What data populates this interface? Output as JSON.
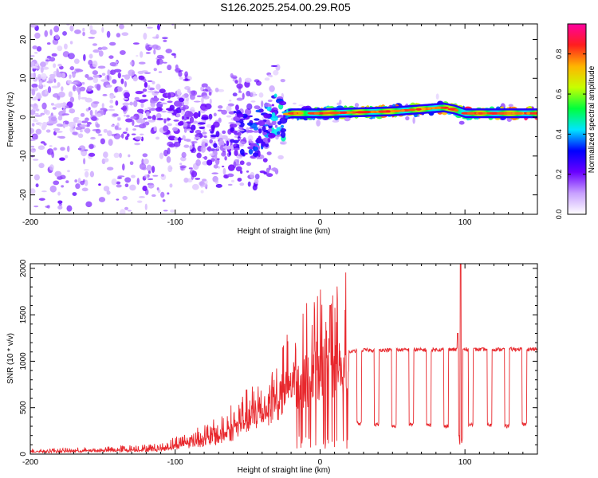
{
  "figure_title": "S126.2025.254.00.29.R05",
  "colors": {
    "series_line": "#e8282d",
    "axis": "#000000",
    "tick": "#000000"
  },
  "chart_data": [
    {
      "type": "heatmap",
      "title": "S126.2025.254.00.29.R05",
      "xlabel": "Height of straight line (km)",
      "ylabel": "Frequency (Hz)",
      "xlim": [
        -200,
        150
      ],
      "ylim": [
        -25,
        24
      ],
      "xticks": [
        -200,
        -100,
        0,
        100
      ],
      "yticks": [
        -20,
        -10,
        0,
        10,
        20
      ],
      "colorbar": {
        "label": "Normalized spectral amplitude",
        "range": [
          0,
          0.95
        ],
        "ticks": [
          "0.0",
          "0.2",
          "0.4",
          "0.6",
          "0.8"
        ],
        "tick_values": [
          0.0,
          0.2,
          0.4,
          0.6,
          0.8
        ],
        "colormap": [
          "#ffffff",
          "#c8a0ff",
          "#6a00ff",
          "#0000ff",
          "#00e5ff",
          "#00ff3c",
          "#c8ff00",
          "#ffb400",
          "#ff1e1e",
          "#ff00a0"
        ]
      },
      "ridge": [
        {
          "x": -200,
          "freq": 5
        },
        {
          "x": -150,
          "freq": 4
        },
        {
          "x": -110,
          "freq": 2
        },
        {
          "x": -90,
          "freq": -3
        },
        {
          "x": -75,
          "freq": -7
        },
        {
          "x": -60,
          "freq": -3
        },
        {
          "x": -45,
          "freq": -5
        },
        {
          "x": -30,
          "freq": 0
        },
        {
          "x": -20,
          "freq": 1
        },
        {
          "x": 0,
          "freq": 1
        },
        {
          "x": 50,
          "freq": 1.5
        },
        {
          "x": 85,
          "freq": 2.5
        },
        {
          "x": 92,
          "freq": 2
        },
        {
          "x": 100,
          "freq": 1
        },
        {
          "x": 150,
          "freq": 1
        }
      ],
      "ridge_intensity": [
        {
          "x": -200,
          "value": 0.1
        },
        {
          "x": -120,
          "value": 0.2
        },
        {
          "x": -60,
          "value": 0.25
        },
        {
          "x": -20,
          "value": 0.5
        },
        {
          "x": 0,
          "value": 0.8
        },
        {
          "x": 150,
          "value": 0.85
        }
      ]
    },
    {
      "type": "line",
      "xlabel": "Height of straight line (km)",
      "ylabel": "SNR (10 * v/v)",
      "xlim": [
        -200,
        150
      ],
      "ylim": [
        0,
        2050
      ],
      "xticks": [
        -200,
        -100,
        0,
        100
      ],
      "yticks": [
        0,
        500,
        1000,
        1500,
        2000
      ],
      "series": [
        {
          "name": "SNR",
          "envelope": [
            {
              "x": -200,
              "y": 30
            },
            {
              "x": -150,
              "y": 40
            },
            {
              "x": -110,
              "y": 60
            },
            {
              "x": -90,
              "y": 140
            },
            {
              "x": -70,
              "y": 200
            },
            {
              "x": -55,
              "y": 350
            },
            {
              "x": -40,
              "y": 500
            },
            {
              "x": -25,
              "y": 700
            },
            {
              "x": -10,
              "y": 900
            },
            {
              "x": 0,
              "y": 980
            },
            {
              "x": 10,
              "y": 1050
            },
            {
              "x": 20,
              "y": 1100
            },
            {
              "x": 30,
              "y": 1120
            },
            {
              "x": 150,
              "y": 1130
            }
          ],
          "dropouts": [
            {
              "x": 27,
              "y": 330
            },
            {
              "x": 39,
              "y": 320
            },
            {
              "x": 51,
              "y": 300
            },
            {
              "x": 63,
              "y": 320
            },
            {
              "x": 75,
              "y": 310
            },
            {
              "x": 87,
              "y": 300
            },
            {
              "x": 104,
              "y": 320
            },
            {
              "x": 117,
              "y": 310
            },
            {
              "x": 129,
              "y": 300
            },
            {
              "x": 141,
              "y": 320
            }
          ],
          "spikes": [
            {
              "x": 7,
              "y": 1600
            },
            {
              "x": 97,
              "y": 2050
            },
            {
              "x": 95,
              "y": 1300
            }
          ]
        }
      ]
    }
  ]
}
